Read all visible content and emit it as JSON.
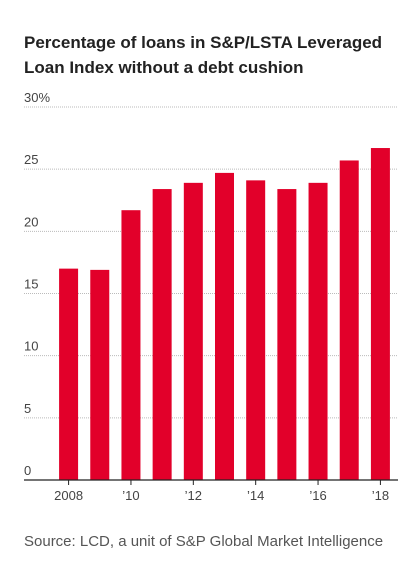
{
  "chart_data": {
    "type": "bar",
    "title": "Percentage of loans in S&P/LSTA Leveraged Loan Index without a debt cushion",
    "source": "Source: LCD, a unit of S&P Global Market Intelligence",
    "categories": [
      "2008",
      null,
      "’10",
      null,
      "’12",
      null,
      "’14",
      null,
      "’16",
      null,
      "’18"
    ],
    "values": [
      17.0,
      16.9,
      21.7,
      23.4,
      23.9,
      24.7,
      24.1,
      23.4,
      23.9,
      25.7,
      26.7
    ],
    "color": "#e2002a",
    "ylim": [
      0,
      30
    ],
    "yticks": [
      0,
      5,
      10,
      15,
      20,
      25,
      {
        "value": 30,
        "label": "30%"
      }
    ],
    "grid": true
  }
}
